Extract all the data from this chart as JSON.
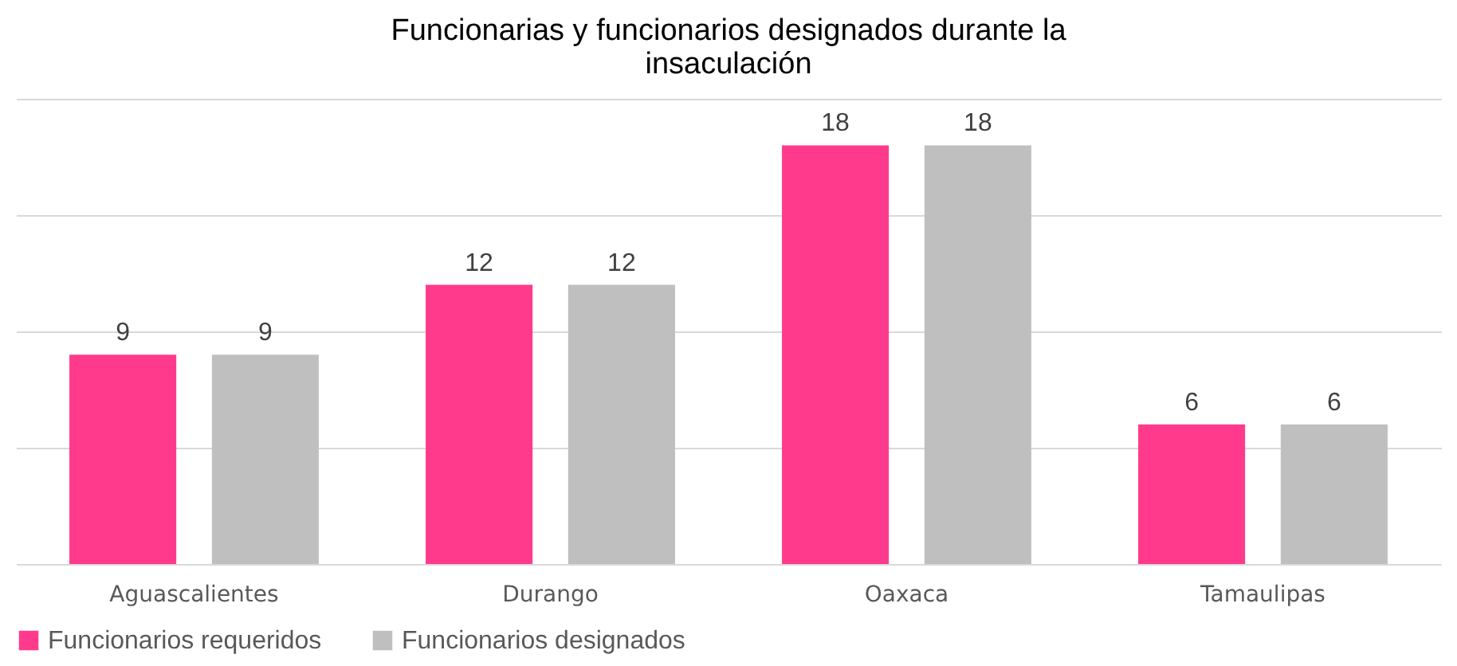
{
  "chart_data": {
    "type": "bar",
    "title": "Funcionarias y funcionarios designados durante la insaculación",
    "categories": [
      "Aguascalientes",
      "Durango",
      "Oaxaca",
      "Tamaulipas"
    ],
    "series": [
      {
        "name": "Funcionarios requeridos",
        "color": "#ff3a8c",
        "values": [
          9,
          12,
          18,
          6
        ]
      },
      {
        "name": "Funcionarios designados",
        "color": "#bfbfbf",
        "values": [
          9,
          12,
          18,
          6
        ]
      }
    ],
    "ylim": [
      0,
      20
    ],
    "yticks": [
      0,
      5,
      10,
      15,
      20
    ],
    "tick_labels": "x",
    "grid": "y",
    "legend": "bottom",
    "data_labels": true
  }
}
